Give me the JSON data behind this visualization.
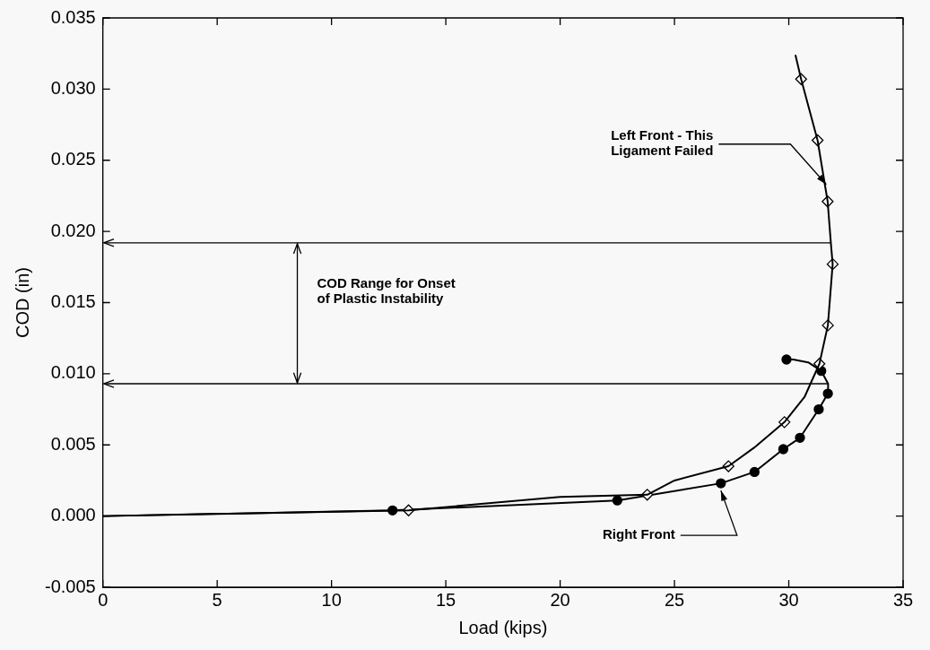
{
  "chart_data": {
    "type": "line",
    "xlabel": "Load (kips)",
    "ylabel": "COD (in)",
    "xlim": [
      0,
      35
    ],
    "xticks": [
      0,
      5,
      10,
      15,
      20,
      25,
      30,
      35
    ],
    "ylim": [
      -0.005,
      0.035
    ],
    "yticks": [
      {
        "value": -0.005,
        "label": "-0.005"
      },
      {
        "value": 0,
        "label": "0.000"
      },
      {
        "value": 0.005,
        "label": "0.005"
      },
      {
        "value": 0.01,
        "label": "0.010"
      },
      {
        "value": 0.015,
        "label": "0.015"
      },
      {
        "value": 0.02,
        "label": "0.020"
      },
      {
        "value": 0.025,
        "label": "0.025"
      },
      {
        "value": 0.03,
        "label": "0.030"
      },
      {
        "value": 0.035,
        "label": "0.035"
      }
    ],
    "grid": false,
    "legend": false,
    "series": [
      {
        "type": "line",
        "marker": "none",
        "color": "#000000",
        "x": [
          0,
          13.37,
          20,
          23.81,
          25,
          27.36,
          28.48,
          29.81,
          30.7,
          31.34,
          31.71,
          31.92,
          31.84,
          31.7,
          31.26,
          30.54,
          30.29
        ],
        "values": [
          0,
          0.0004,
          0.00135,
          0.0015,
          0.0025,
          0.0035,
          0.0048,
          0.0066,
          0.0084,
          0.0107,
          0.0134,
          0.0177,
          0.0192,
          0.0221,
          0.0264,
          0.0307,
          0.0324
        ]
      },
      {
        "type": "scatter",
        "marker": "diamond",
        "color": "#000000",
        "x": [
          13.37,
          23.81,
          27.36,
          29.81,
          31.34,
          31.71,
          31.92,
          31.7,
          31.26,
          30.54
        ],
        "values": [
          0.0004,
          0.0015,
          0.0035,
          0.0066,
          0.0107,
          0.0134,
          0.0177,
          0.0221,
          0.0264,
          0.0307
        ]
      },
      {
        "type": "line",
        "marker": "none",
        "color": "#000000",
        "x": [
          0,
          12.67,
          22.5,
          27.03,
          28.5,
          29.76,
          30.49,
          31.31,
          31.71,
          31.72,
          31.42,
          30.85,
          30.2,
          29.9
        ],
        "values": [
          0,
          0.0004,
          0.0011,
          0.0023,
          0.0031,
          0.0047,
          0.0055,
          0.0075,
          0.0086,
          0.0093,
          0.0102,
          0.0108,
          0.011,
          0.011
        ]
      },
      {
        "type": "scatter",
        "marker": "circle",
        "color": "#000000",
        "x": [
          12.67,
          22.5,
          27.03,
          28.5,
          29.76,
          30.49,
          31.31,
          31.71,
          31.42,
          29.9
        ],
        "values": [
          0.0004,
          0.0011,
          0.0023,
          0.0031,
          0.0047,
          0.0055,
          0.0075,
          0.0086,
          0.0102,
          0.011
        ]
      }
    ],
    "ref_lines": [
      {
        "axis": "y",
        "value": 0.0192
      },
      {
        "axis": "y",
        "value": 0.0093
      }
    ],
    "annotations": [
      {
        "text": "Left Front - This\nLigament Failed",
        "x": 31.64,
        "y": 0.0233
      },
      {
        "text": "Right Front",
        "x": 27.03,
        "y": 0.0023
      },
      "COD Range for Onset\nof Plastic Instability"
    ]
  }
}
